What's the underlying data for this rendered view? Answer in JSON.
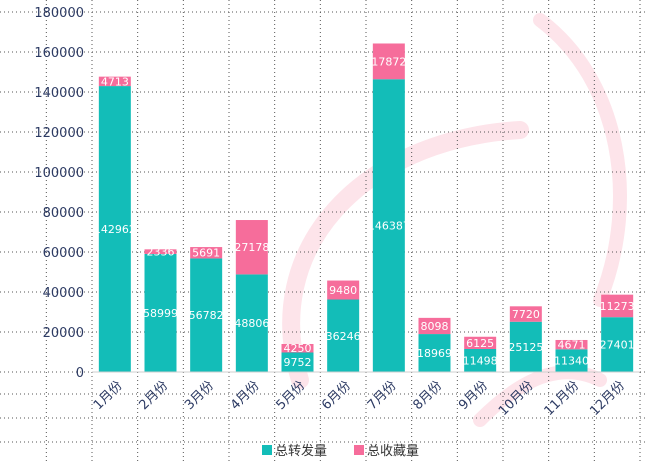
{
  "chart_data": {
    "type": "bar",
    "stacked": true,
    "categories": [
      "1月份",
      "2月份",
      "3月份",
      "4月份",
      "5月份",
      "6月份",
      "7月份",
      "8月份",
      "9月份",
      "10月份",
      "11月份",
      "12月份"
    ],
    "series": [
      {
        "name": "总转发量",
        "color": "#13bdb8",
        "values": [
          142962,
          58999,
          56782,
          48806,
          9752,
          36246,
          146387,
          18969,
          11498,
          25125,
          11340,
          27401
        ]
      },
      {
        "name": "总收藏量",
        "color": "#f66d9b",
        "values": [
          4713,
          2336,
          5691,
          27178,
          4250,
          9480,
          17872,
          8098,
          6125,
          7720,
          4671,
          11273
        ]
      }
    ],
    "ylim": [
      0,
      180000
    ],
    "yticks": [
      "0",
      "20000",
      "40000",
      "60000",
      "80000",
      "100000",
      "120000",
      "140000",
      "160000",
      "180000"
    ],
    "grid": "dotted",
    "legend_position": "bottom",
    "watermark_color": "#fde4ea"
  }
}
